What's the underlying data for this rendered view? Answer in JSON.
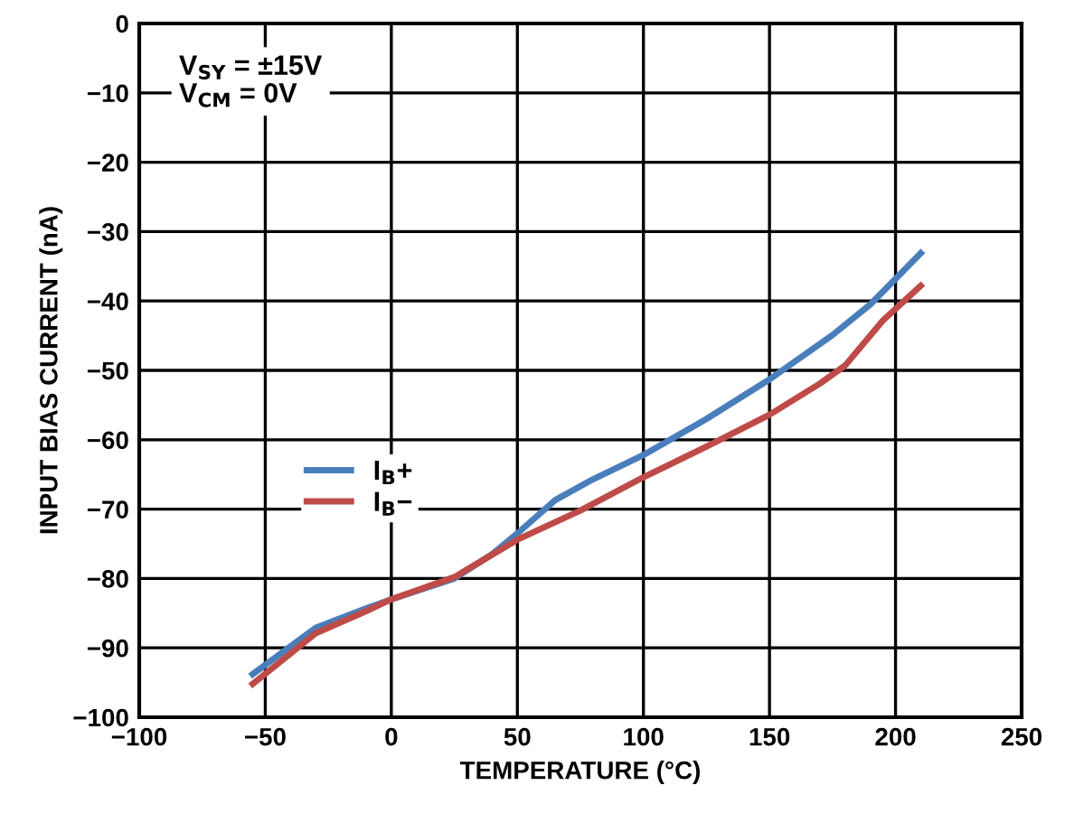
{
  "chart_data": {
    "type": "line",
    "xlabel": "TEMPERATURE (°C)",
    "ylabel": "INPUT BIAS CURRENT (nA)",
    "xlim": [
      -100,
      250
    ],
    "xticks": [
      -100,
      -50,
      0,
      50,
      100,
      150,
      200,
      250
    ],
    "ylim": [
      -100,
      0
    ],
    "yticks": [
      -100,
      -90,
      -80,
      -70,
      -60,
      -50,
      -40,
      -30,
      -20,
      -10,
      0
    ],
    "grid": true,
    "legend": "left",
    "line_style": "solid",
    "marker": "none",
    "annotations": [
      "V$_{SY}$ = ±15V\nV$_{CM}$ = 0V"
    ],
    "series": [
      {
        "name": "I$_{B}$+",
        "color": "#4a7ebb",
        "x": [
          -55,
          -30,
          -10,
          0,
          25,
          40,
          50,
          65,
          80,
          100,
          125,
          150,
          175,
          190,
          210
        ],
        "values": [
          -93.8,
          -87.1,
          -84.3,
          -83,
          -80,
          -76.5,
          -73.5,
          -68.7,
          -65.7,
          -62.2,
          -57,
          -51.3,
          -44.9,
          -40.5,
          -33.1
        ]
      },
      {
        "name": "I$_{B}$−",
        "color": "#be4b48",
        "x": [
          -55,
          -30,
          -10,
          0,
          25,
          50,
          75,
          100,
          125,
          150,
          170,
          180,
          195,
          210
        ],
        "values": [
          -95.2,
          -87.9,
          -84.7,
          -83,
          -79.8,
          -74.4,
          -70.2,
          -65.4,
          -61,
          -56.4,
          -51.9,
          -49.3,
          -42.8,
          -37.8
        ]
      }
    ]
  }
}
